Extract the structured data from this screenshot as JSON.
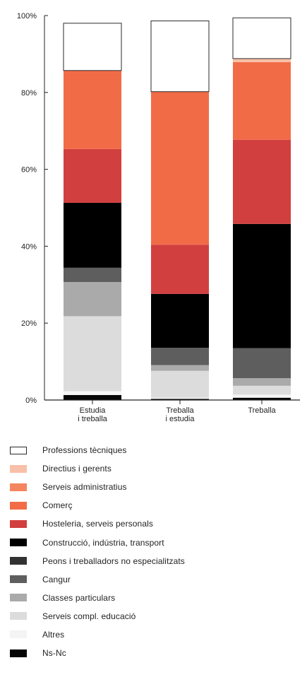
{
  "chart_data": {
    "type": "bar",
    "stacked": true,
    "categories": [
      [
        "Estudia",
        "i treballa"
      ],
      [
        "Treballa",
        "i estudia"
      ],
      [
        "Treballa"
      ]
    ],
    "y_ticks": [
      "0%",
      "20%",
      "40%",
      "60%",
      "80%",
      "100%"
    ],
    "ylim": [
      0,
      100
    ],
    "grid": false,
    "legend_position": "bottom",
    "series": [
      {
        "name": "Ns-Nc",
        "color": "#050505",
        "border": "#050505",
        "values": [
          1.3,
          0.3,
          0.6
        ]
      },
      {
        "name": "Altres",
        "color": "#f4f4f4",
        "border": "#f4f4f4",
        "values": [
          1.0,
          0.3,
          0.8
        ]
      },
      {
        "name": "Serveis compl. educació",
        "color": "#dcdcdc",
        "border": "#dcdcdc",
        "values": [
          19.5,
          7.0,
          2.3
        ]
      },
      {
        "name": "Classes particulars",
        "color": "#aaaaaa",
        "border": "#aaaaaa",
        "values": [
          8.9,
          1.5,
          2.0
        ]
      },
      {
        "name": "Cangur",
        "color": "#5e5e5e",
        "border": "#5e5e5e",
        "values": [
          3.7,
          4.5,
          7.8
        ]
      },
      {
        "name": "Peons i treballadors no especialitzats",
        "color": "#323232",
        "border": "#323232",
        "values": [
          0,
          0,
          0
        ]
      },
      {
        "name": "Construcció, indústria, transport",
        "color": "#000000",
        "border": "#000000",
        "values": [
          16.9,
          14.0,
          32.3
        ]
      },
      {
        "name": "Hosteleria, serveis personals",
        "color": "#d23f3f",
        "border": "#d23f3f",
        "values": [
          14.0,
          12.8,
          21.9
        ]
      },
      {
        "name": "Comerç",
        "color": "#f26b47",
        "border": "#f26b47",
        "values": [
          20.4,
          39.8,
          20.2
        ]
      },
      {
        "name": "Serveis administratius",
        "color": "#f5855e",
        "border": "#f5855e",
        "values": [
          0,
          0,
          0
        ]
      },
      {
        "name": "Directius i gerents",
        "color": "#f8c0a8",
        "border": "#f8c0a8",
        "values": [
          0,
          0,
          0.9
        ]
      },
      {
        "name": "Professions tècniques",
        "color": "#ffffff",
        "border": "#2a2a2a",
        "values": [
          12.3,
          18.4,
          10.6
        ]
      }
    ]
  }
}
